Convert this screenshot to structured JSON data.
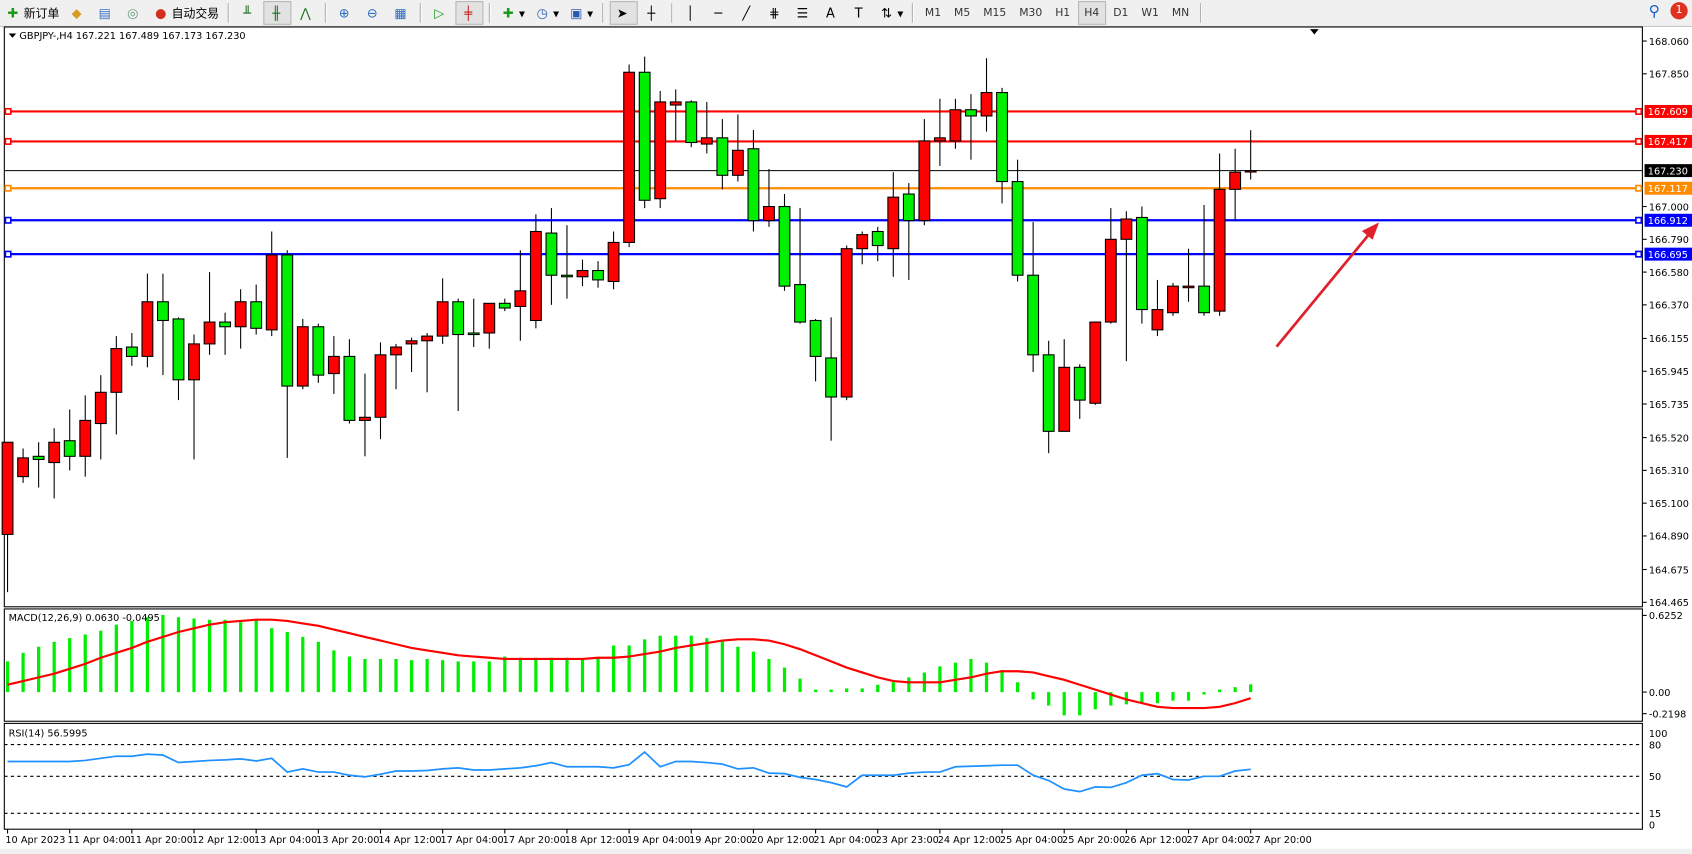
{
  "toolbar": {
    "new_order": "新订单",
    "auto_trading": "自动交易",
    "timeframes": [
      "M1",
      "M5",
      "M15",
      "M30",
      "H1",
      "H4",
      "D1",
      "W1",
      "MN"
    ],
    "active_timeframe": "H4",
    "notification_count": "1",
    "icons": [
      "new-order-icon",
      "market-watch-icon",
      "navigator-icon",
      "signals-icon",
      "auto-trading-icon",
      "bar-chart-icon",
      "candlestick-icon",
      "line-chart-icon",
      "zoom-in-icon",
      "zoom-out-icon",
      "tile-windows-icon",
      "chart-shift-icon",
      "autoscroll-icon",
      "indicators-icon",
      "periods-icon",
      "templates-icon",
      "cursor-icon",
      "crosshair-icon",
      "vertical-line-icon",
      "horizontal-line-icon",
      "trendline-icon",
      "fibonacci-icon",
      "fibo-fan-icon",
      "text-icon",
      "text-label-icon",
      "arrows-icon"
    ]
  },
  "chart": {
    "header": "GBPJPY-,H4  167.221 167.489 167.173 167.230",
    "macd_header": "MACD(12,26,9) 0.0630 -0.0495",
    "rsi_header": "RSI(14) 56.5995",
    "colors": {
      "bull": "#ff0000",
      "bear": "#00ee00",
      "macd_hist": "#00ee00",
      "macd_signal": "#ff0000",
      "rsi": "#1e90ff",
      "arrow": "#e0202a"
    }
  },
  "chart_data": {
    "type": "candlestick",
    "symbol": "GBPJPY-",
    "timeframe": "H4",
    "ylim": [
      164.465,
      168.06
    ],
    "price_ticks": [
      "168.060",
      "167.850",
      "167.000",
      "166.790",
      "166.580",
      "166.370",
      "166.155",
      "165.945",
      "165.735",
      "165.520",
      "165.310",
      "165.100",
      "164.890",
      "164.675",
      "164.465"
    ],
    "time_labels": [
      "10 Apr 2023",
      "11 Apr 04:00",
      "11 Apr 20:00",
      "12 Apr 12:00",
      "13 Apr 04:00",
      "13 Apr 20:00",
      "14 Apr 12:00",
      "17 Apr 04:00",
      "17 Apr 20:00",
      "18 Apr 12:00",
      "19 Apr 04:00",
      "19 Apr 20:00",
      "20 Apr 12:00",
      "21 Apr 04:00",
      "23 Apr 23:00",
      "24 Apr 12:00",
      "25 Apr 04:00",
      "25 Apr 20:00",
      "26 Apr 12:00",
      "27 Apr 04:00",
      "27 Apr 20:00"
    ],
    "ohlc": [
      [
        164.9,
        165.49,
        164.53,
        165.49
      ],
      [
        165.27,
        165.45,
        165.23,
        165.39
      ],
      [
        165.4,
        165.49,
        165.2,
        165.38
      ],
      [
        165.36,
        165.58,
        165.13,
        165.49
      ],
      [
        165.5,
        165.7,
        165.31,
        165.4
      ],
      [
        165.4,
        165.79,
        165.27,
        165.63
      ],
      [
        165.61,
        165.92,
        165.38,
        165.81
      ],
      [
        165.81,
        166.17,
        165.54,
        166.09
      ],
      [
        166.1,
        166.19,
        165.98,
        166.04
      ],
      [
        166.04,
        166.57,
        165.97,
        166.39
      ],
      [
        166.39,
        166.57,
        165.92,
        166.27
      ],
      [
        166.28,
        166.29,
        165.76,
        165.89
      ],
      [
        165.89,
        166.18,
        165.38,
        166.12
      ],
      [
        166.12,
        166.58,
        166.05,
        166.26
      ],
      [
        166.26,
        166.32,
        166.05,
        166.23
      ],
      [
        166.23,
        166.47,
        166.09,
        166.39
      ],
      [
        166.39,
        166.5,
        166.18,
        166.22
      ],
      [
        166.21,
        166.84,
        166.17,
        166.69
      ],
      [
        166.69,
        166.72,
        165.39,
        165.85
      ],
      [
        165.85,
        166.28,
        165.83,
        166.23
      ],
      [
        166.23,
        166.25,
        165.87,
        165.92
      ],
      [
        165.93,
        166.17,
        165.8,
        166.04
      ],
      [
        166.04,
        166.15,
        165.61,
        165.63
      ],
      [
        165.63,
        165.93,
        165.4,
        165.65
      ],
      [
        165.65,
        166.13,
        165.51,
        166.05
      ],
      [
        166.05,
        166.12,
        165.83,
        166.1
      ],
      [
        166.12,
        166.16,
        165.94,
        166.14
      ],
      [
        166.14,
        166.19,
        165.81,
        166.17
      ],
      [
        166.17,
        166.54,
        166.12,
        166.39
      ],
      [
        166.39,
        166.41,
        165.69,
        166.18
      ],
      [
        166.19,
        166.41,
        166.1,
        166.18
      ],
      [
        166.19,
        166.38,
        166.09,
        166.38
      ],
      [
        166.38,
        166.41,
        166.33,
        166.35
      ],
      [
        166.36,
        166.72,
        166.14,
        166.46
      ],
      [
        166.27,
        166.95,
        166.22,
        166.84
      ],
      [
        166.83,
        166.99,
        166.37,
        166.56
      ],
      [
        166.56,
        166.88,
        166.41,
        166.55
      ],
      [
        166.55,
        166.66,
        166.49,
        166.59
      ],
      [
        166.59,
        166.65,
        166.48,
        166.53
      ],
      [
        166.52,
        166.84,
        166.47,
        166.77
      ],
      [
        166.77,
        167.91,
        166.74,
        167.86
      ],
      [
        167.86,
        167.96,
        166.99,
        167.04
      ],
      [
        167.05,
        167.74,
        166.99,
        167.67
      ],
      [
        167.65,
        167.75,
        167.42,
        167.67
      ],
      [
        167.67,
        167.68,
        167.38,
        167.41
      ],
      [
        167.4,
        167.67,
        167.34,
        167.44
      ],
      [
        167.44,
        167.56,
        167.11,
        167.2
      ],
      [
        167.2,
        167.59,
        167.16,
        167.36
      ],
      [
        167.37,
        167.49,
        166.84,
        166.91
      ],
      [
        166.91,
        167.24,
        166.87,
        167.0
      ],
      [
        167.0,
        167.08,
        166.46,
        166.49
      ],
      [
        166.5,
        166.99,
        166.25,
        166.26
      ],
      [
        166.27,
        166.28,
        165.88,
        166.04
      ],
      [
        166.03,
        166.29,
        165.5,
        165.78
      ],
      [
        165.78,
        166.75,
        165.76,
        166.73
      ],
      [
        166.73,
        166.84,
        166.63,
        166.82
      ],
      [
        166.84,
        166.87,
        166.65,
        166.75
      ],
      [
        166.73,
        167.22,
        166.55,
        167.06
      ],
      [
        167.08,
        167.15,
        166.53,
        166.91
      ],
      [
        166.91,
        167.56,
        166.88,
        167.42
      ],
      [
        167.42,
        167.69,
        167.26,
        167.44
      ],
      [
        167.42,
        167.69,
        167.37,
        167.62
      ],
      [
        167.62,
        167.72,
        167.3,
        167.58
      ],
      [
        167.58,
        167.95,
        167.48,
        167.73
      ],
      [
        167.73,
        167.76,
        167.02,
        167.16
      ],
      [
        167.16,
        167.3,
        166.52,
        166.56
      ],
      [
        166.56,
        166.9,
        165.94,
        166.05
      ],
      [
        166.05,
        166.14,
        165.42,
        165.56
      ],
      [
        165.56,
        166.15,
        165.56,
        165.97
      ],
      [
        165.97,
        165.99,
        165.64,
        165.76
      ],
      [
        165.74,
        166.26,
        165.73,
        166.26
      ],
      [
        166.26,
        166.99,
        166.25,
        166.79
      ],
      [
        166.79,
        166.97,
        166.01,
        166.92
      ],
      [
        166.93,
        167.0,
        166.25,
        166.34
      ],
      [
        166.21,
        166.53,
        166.17,
        166.34
      ],
      [
        166.32,
        166.51,
        166.3,
        166.49
      ],
      [
        166.48,
        166.73,
        166.39,
        166.49
      ],
      [
        166.49,
        167.01,
        166.3,
        166.32
      ],
      [
        166.33,
        167.34,
        166.3,
        167.11
      ],
      [
        167.11,
        167.37,
        166.91,
        167.22
      ],
      [
        167.221,
        167.489,
        167.173,
        167.23
      ]
    ],
    "levels": [
      {
        "price": 167.609,
        "label": "167.609",
        "color": "#ff0000"
      },
      {
        "price": 167.417,
        "label": "167.417",
        "color": "#ff0000"
      },
      {
        "price": 167.23,
        "label": "167.230",
        "color": "#000000"
      },
      {
        "price": 167.117,
        "label": "167.117",
        "color": "#ff8c00"
      },
      {
        "price": 166.912,
        "label": "166.912",
        "color": "#0000ff"
      },
      {
        "price": 166.695,
        "label": "166.695",
        "color": "#0000ff"
      }
    ],
    "macd": {
      "ticks": [
        "0.6252",
        "0.00",
        "-0.2198"
      ],
      "ylim": [
        -0.2198,
        0.6252
      ],
      "histogram": [
        0.25,
        0.32,
        0.37,
        0.41,
        0.44,
        0.47,
        0.5,
        0.55,
        0.58,
        0.61,
        0.63,
        0.61,
        0.6,
        0.59,
        0.59,
        0.57,
        0.59,
        0.52,
        0.49,
        0.45,
        0.41,
        0.34,
        0.29,
        0.27,
        0.27,
        0.27,
        0.26,
        0.27,
        0.26,
        0.25,
        0.25,
        0.25,
        0.29,
        0.28,
        0.28,
        0.28,
        0.28,
        0.27,
        0.28,
        0.38,
        0.38,
        0.43,
        0.46,
        0.46,
        0.46,
        0.44,
        0.42,
        0.37,
        0.33,
        0.27,
        0.2,
        0.11,
        0.02,
        0.02,
        0.03,
        0.03,
        0.06,
        0.08,
        0.12,
        0.16,
        0.21,
        0.24,
        0.27,
        0.24,
        0.18,
        0.08,
        -0.06,
        -0.11,
        -0.19,
        -0.19,
        -0.14,
        -0.11,
        -0.1,
        -0.09,
        -0.09,
        -0.07,
        -0.07,
        -0.02,
        0.02,
        0.04,
        0.063
      ],
      "signal": [
        0.06,
        0.09,
        0.12,
        0.15,
        0.19,
        0.23,
        0.28,
        0.32,
        0.36,
        0.41,
        0.45,
        0.49,
        0.52,
        0.55,
        0.57,
        0.58,
        0.59,
        0.59,
        0.58,
        0.56,
        0.54,
        0.51,
        0.48,
        0.45,
        0.42,
        0.39,
        0.36,
        0.34,
        0.32,
        0.3,
        0.29,
        0.28,
        0.27,
        0.27,
        0.27,
        0.27,
        0.27,
        0.27,
        0.28,
        0.28,
        0.29,
        0.31,
        0.33,
        0.36,
        0.38,
        0.4,
        0.42,
        0.43,
        0.43,
        0.42,
        0.39,
        0.35,
        0.3,
        0.25,
        0.2,
        0.16,
        0.12,
        0.09,
        0.08,
        0.08,
        0.08,
        0.1,
        0.12,
        0.15,
        0.17,
        0.17,
        0.16,
        0.13,
        0.1,
        0.06,
        0.02,
        -0.02,
        -0.06,
        -0.09,
        -0.12,
        -0.13,
        -0.13,
        -0.13,
        -0.12,
        -0.09,
        -0.0495
      ]
    },
    "rsi": {
      "ticks": [
        "100",
        "80",
        "50",
        "15",
        "0"
      ],
      "levels": [
        80,
        50,
        15
      ],
      "values": [
        64,
        64,
        64,
        64,
        64,
        65,
        67,
        69,
        69,
        71,
        70,
        63,
        64,
        65,
        65.5,
        66.5,
        64.5,
        67,
        54,
        57,
        54,
        54,
        51,
        49.5,
        52,
        55,
        55,
        55.5,
        57,
        58,
        56,
        56,
        57,
        58,
        60,
        63,
        59,
        59,
        59,
        58,
        61,
        73,
        59,
        64,
        64,
        63,
        61.5,
        57,
        58,
        53,
        52.5,
        49,
        47,
        44,
        40,
        51,
        51,
        51,
        53,
        54,
        54,
        59,
        59.5,
        60,
        60.5,
        60.5,
        51,
        46,
        38,
        35.5,
        40,
        39.5,
        44,
        51,
        52.5,
        47,
        46.5,
        50,
        50,
        55,
        56.6
      ]
    }
  }
}
